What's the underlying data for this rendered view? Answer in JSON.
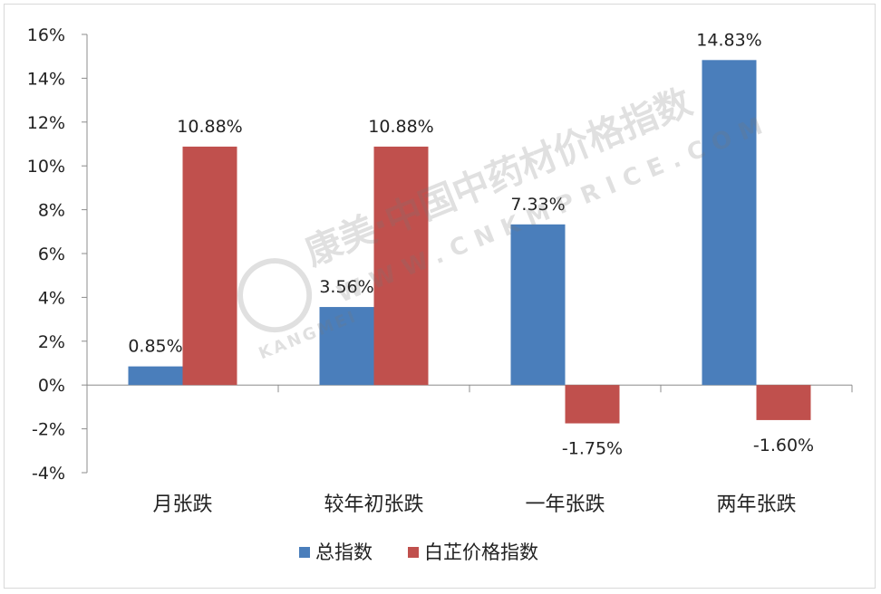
{
  "chart_data": {
    "type": "bar",
    "categories": [
      "月张跌",
      "较年初张跌",
      "一年张跌",
      "两年张跌"
    ],
    "series": [
      {
        "name": "总指数",
        "values": [
          0.85,
          3.56,
          7.33,
          14.83
        ],
        "labels": [
          "0.85%",
          "3.56%",
          "7.33%",
          "14.83%"
        ],
        "color": "#4a7ebb"
      },
      {
        "name": "白芷价格指数",
        "values": [
          10.88,
          10.88,
          -1.75,
          -1.6
        ],
        "labels": [
          "10.88%",
          "10.88%",
          "-1.75%",
          "-1.60%"
        ],
        "color": "#c0504d"
      }
    ],
    "yticks": [
      "16%",
      "14%",
      "12%",
      "10%",
      "8%",
      "6%",
      "4%",
      "2%",
      "0%",
      "-2%",
      "-4%"
    ],
    "ylim": [
      -4,
      16
    ],
    "unit": "%",
    "legend_position": "bottom",
    "grid": false
  },
  "watermark": {
    "text_main": "康美·中国中药材价格指数",
    "text_url": "WWW.CNKMPRICE.COM",
    "text_brand": "KANGMEI"
  }
}
